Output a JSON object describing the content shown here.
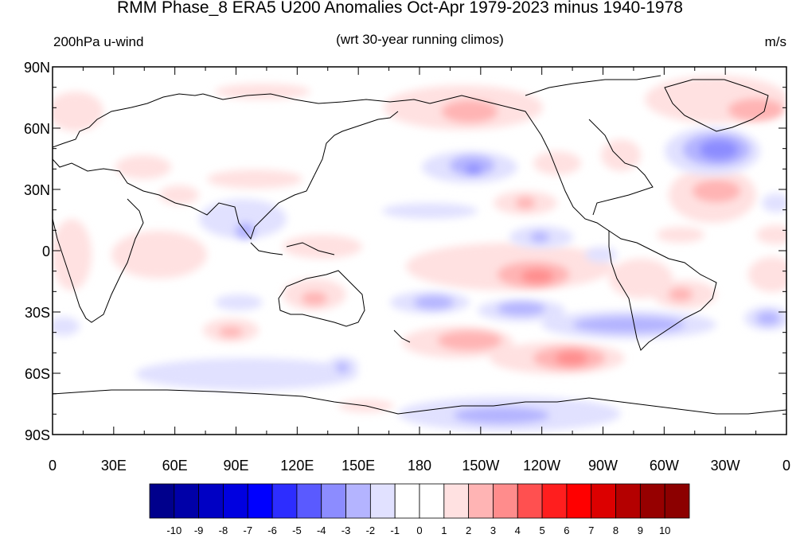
{
  "title": "RMM Phase_8 ERA5 U200 Anomalies Oct-Apr 1979-2023 minus 1940-1978",
  "left_string": "200hPa u-wind",
  "center_string": "(wrt 30-year running climos)",
  "right_string": "m/s",
  "x_tick_labels": [
    "0",
    "30E",
    "60E",
    "90E",
    "120E",
    "150E",
    "180",
    "150W",
    "120W",
    "90W",
    "60W",
    "30W",
    "0"
  ],
  "y_tick_labels": [
    "90N",
    "60N",
    "30N",
    "0",
    "30S",
    "60S",
    "90S"
  ],
  "colorbar": {
    "labels": [
      "-10",
      "-9",
      "-8",
      "-7",
      "-6",
      "-5",
      "-4",
      "-3",
      "-2",
      "-1",
      "0",
      "1",
      "2",
      "3",
      "4",
      "5",
      "6",
      "7",
      "8",
      "9",
      "10"
    ],
    "colors": [
      "#00008c",
      "#0000a8",
      "#0000c4",
      "#0000e0",
      "#0000ff",
      "#2d2dff",
      "#5a5aff",
      "#8c8cff",
      "#b4b4ff",
      "#e1e1ff",
      "#ffffff",
      "#ffffff",
      "#ffe1e1",
      "#ffb4b4",
      "#ff8c8c",
      "#ff5050",
      "#ff1e1e",
      "#ff0000",
      "#dc0000",
      "#b40000",
      "#960000",
      "#8c0000"
    ]
  },
  "colors": {
    "positive": "#ff7070",
    "negative": "#7070ff",
    "coast": "#000000"
  }
}
